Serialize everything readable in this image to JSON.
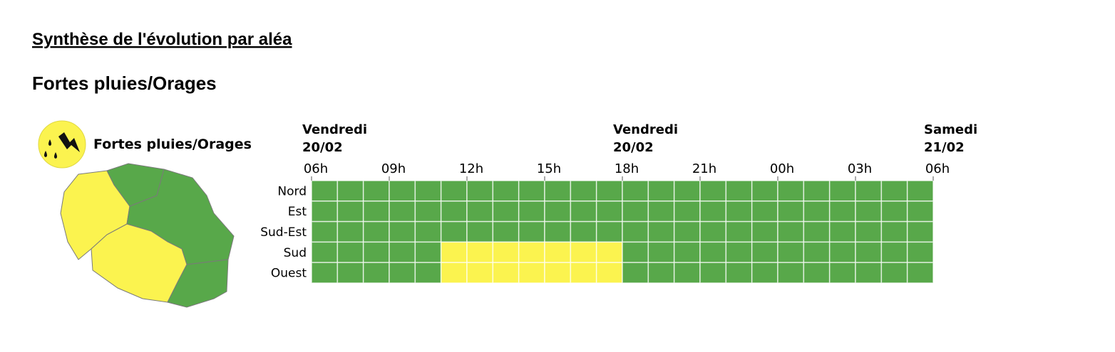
{
  "header": {
    "title": "Synthèse de l'évolution par aléa",
    "subtitle": "Fortes pluies/Orages"
  },
  "legend": {
    "label": "Fortes pluies/Orages"
  },
  "timeline": {
    "days": [
      {
        "name": "Vendredi",
        "date": "20/02"
      },
      {
        "name": "Vendredi",
        "date": "20/02"
      },
      {
        "name": "Samedi",
        "date": "21/02"
      }
    ],
    "hours": [
      "06h",
      "09h",
      "12h",
      "15h",
      "18h",
      "21h",
      "00h",
      "03h",
      "06h"
    ],
    "palette": {
      "1": "#58a84a",
      "2": "#fbf34f"
    },
    "rows": [
      {
        "name": "Nord",
        "levels": [
          1,
          1,
          1,
          1,
          1,
          1,
          1,
          1,
          1,
          1,
          1,
          1,
          1,
          1,
          1,
          1,
          1,
          1,
          1,
          1,
          1,
          1,
          1,
          1
        ]
      },
      {
        "name": "Est",
        "levels": [
          1,
          1,
          1,
          1,
          1,
          1,
          1,
          1,
          1,
          1,
          1,
          1,
          1,
          1,
          1,
          1,
          1,
          1,
          1,
          1,
          1,
          1,
          1,
          1
        ]
      },
      {
        "name": "Sud-Est",
        "levels": [
          1,
          1,
          1,
          1,
          1,
          1,
          1,
          1,
          1,
          1,
          1,
          1,
          1,
          1,
          1,
          1,
          1,
          1,
          1,
          1,
          1,
          1,
          1,
          1
        ]
      },
      {
        "name": "Sud",
        "levels": [
          1,
          1,
          1,
          1,
          1,
          2,
          2,
          2,
          2,
          2,
          2,
          2,
          1,
          1,
          1,
          1,
          1,
          1,
          1,
          1,
          1,
          1,
          1,
          1
        ]
      },
      {
        "name": "Ouest",
        "levels": [
          1,
          1,
          1,
          1,
          1,
          2,
          2,
          2,
          2,
          2,
          2,
          2,
          1,
          1,
          1,
          1,
          1,
          1,
          1,
          1,
          1,
          1,
          1,
          1
        ]
      }
    ]
  }
}
